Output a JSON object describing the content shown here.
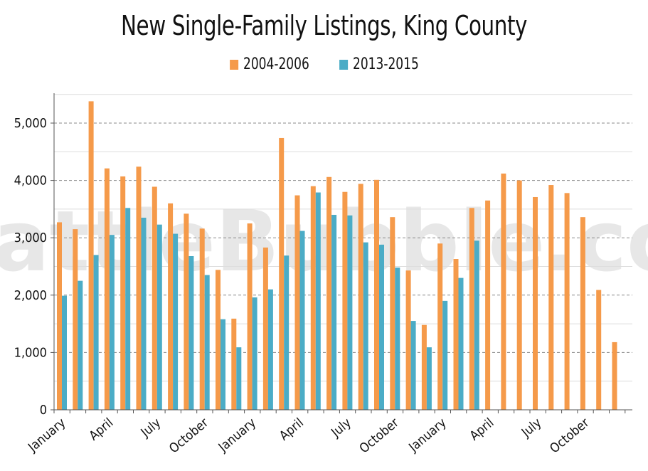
{
  "chart_data": {
    "type": "bar",
    "title": "New Single-Family Listings, King County",
    "watermark": "SeattleBubble.com",
    "ylim": [
      0,
      5500
    ],
    "yticks": [
      0,
      1000,
      2000,
      3000,
      4000,
      5000
    ],
    "ytick_labels": [
      "0",
      "1,000",
      "2,000",
      "3,000",
      "4,000",
      "5,000"
    ],
    "grid": true,
    "legend_position": "top-center",
    "months_count": 36,
    "xtick_labels": [
      {
        "index": 0,
        "label": "January"
      },
      {
        "index": 3,
        "label": "April"
      },
      {
        "index": 6,
        "label": "July"
      },
      {
        "index": 9,
        "label": "October"
      },
      {
        "index": 12,
        "label": "January"
      },
      {
        "index": 15,
        "label": "April"
      },
      {
        "index": 18,
        "label": "July"
      },
      {
        "index": 21,
        "label": "October"
      },
      {
        "index": 24,
        "label": "January"
      },
      {
        "index": 27,
        "label": "April"
      },
      {
        "index": 30,
        "label": "July"
      },
      {
        "index": 33,
        "label": "October"
      }
    ],
    "series": [
      {
        "name": "2004-2006",
        "color": "#f59a4a",
        "values": [
          3270,
          3150,
          5380,
          4210,
          4070,
          4240,
          3890,
          3600,
          3420,
          3160,
          2440,
          1590,
          3250,
          2830,
          4740,
          3740,
          3900,
          4060,
          3800,
          3940,
          4010,
          3360,
          2430,
          1480,
          2900,
          2630,
          3520,
          3650,
          4120,
          4000,
          3710,
          3920,
          3780,
          3360,
          2090,
          1180
        ]
      },
      {
        "name": "2013-2015",
        "color": "#4bacc6",
        "values": [
          1990,
          2250,
          2700,
          3050,
          3520,
          3350,
          3230,
          3070,
          2680,
          2350,
          1580,
          1090,
          1960,
          2100,
          2690,
          3120,
          3790,
          3400,
          3390,
          2920,
          2880,
          2480,
          1550,
          1090,
          1900,
          2300,
          2950,
          null,
          null,
          null,
          null,
          null,
          null,
          null,
          null,
          null
        ]
      }
    ]
  }
}
